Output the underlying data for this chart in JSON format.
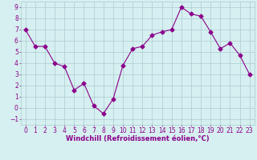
{
  "x": [
    0,
    1,
    2,
    3,
    4,
    5,
    6,
    7,
    8,
    9,
    10,
    11,
    12,
    13,
    14,
    15,
    16,
    17,
    18,
    19,
    20,
    21,
    22,
    23
  ],
  "y": [
    7,
    5.5,
    5.5,
    4.0,
    3.7,
    1.6,
    2.2,
    0.2,
    -0.5,
    0.8,
    3.8,
    5.3,
    5.5,
    6.5,
    6.8,
    7.0,
    9.0,
    8.4,
    8.2,
    6.8,
    5.3,
    5.8,
    4.7,
    3.0
  ],
  "line_color": "#8B008B",
  "marker": "D",
  "markersize": 2.5,
  "linewidth": 0.8,
  "xlabel": "Windchill (Refroidissement éolien,°C)",
  "xlabel_fontsize": 6,
  "yticks": [
    -1,
    0,
    1,
    2,
    3,
    4,
    5,
    6,
    7,
    8,
    9
  ],
  "xticks": [
    0,
    1,
    2,
    3,
    4,
    5,
    6,
    7,
    8,
    9,
    10,
    11,
    12,
    13,
    14,
    15,
    16,
    17,
    18,
    19,
    20,
    21,
    22,
    23
  ],
  "ylim": [
    -1.5,
    9.5
  ],
  "xlim": [
    -0.5,
    23.5
  ],
  "bg_color": "#d6eff0",
  "grid_color": "#aaccd0",
  "tick_fontsize": 5.5,
  "tick_color": "#8B008B",
  "label_color": "#8B008B"
}
